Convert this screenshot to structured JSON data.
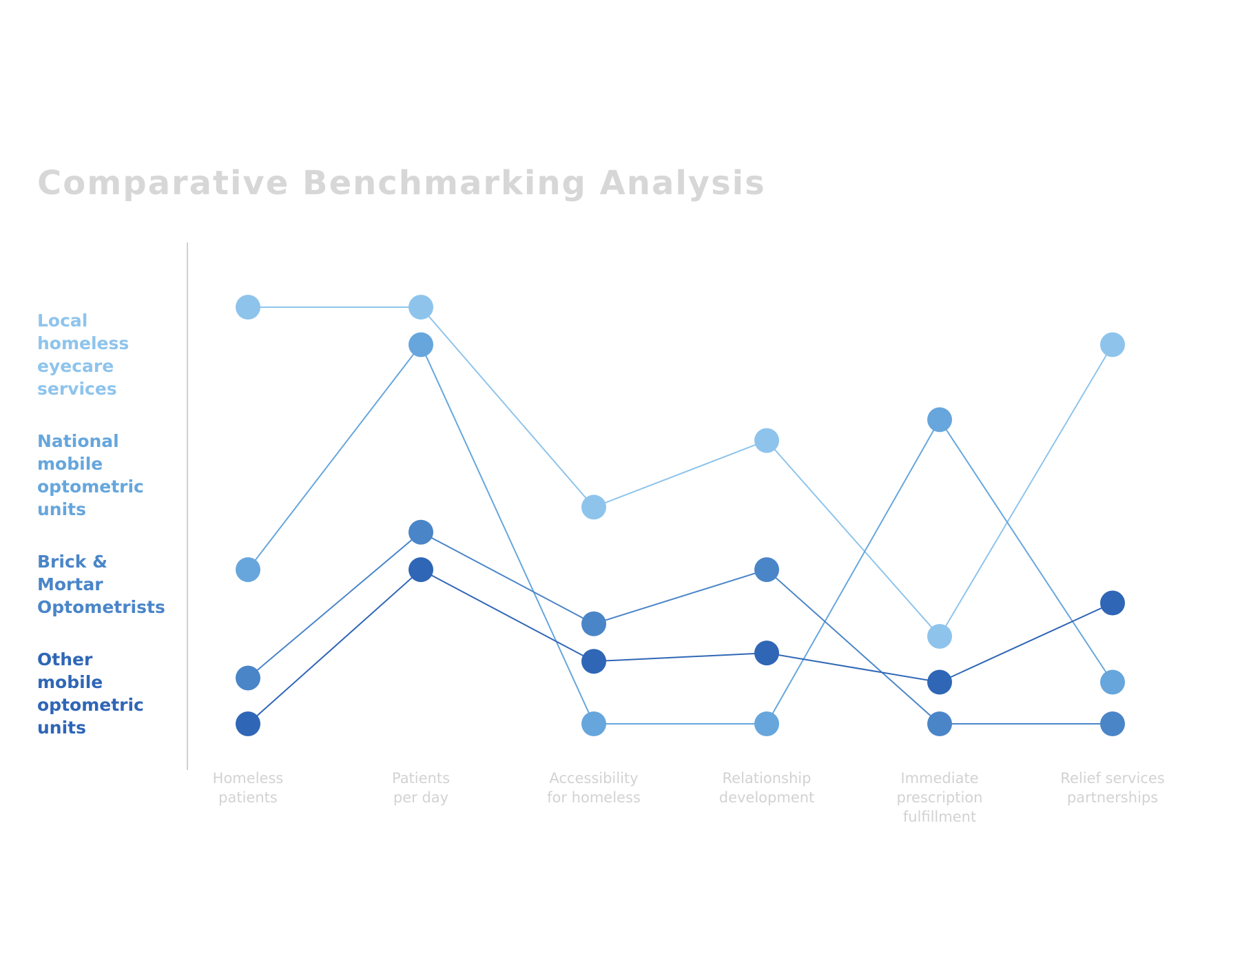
{
  "chart_data": {
    "type": "line",
    "title": "Comparative Benchmarking Analysis",
    "categories": [
      "Homeless patients",
      "Patients per day",
      "Accessibility for homeless",
      "Relationship development",
      "Immediate prescription fulfillment",
      "Relief services partnerships"
    ],
    "category_lines": [
      [
        "Homeless",
        "patients"
      ],
      [
        "Patients",
        "per day"
      ],
      [
        "Accessibility",
        "for homeless"
      ],
      [
        "Relationship",
        "development"
      ],
      [
        "Immediate",
        "prescription",
        "fulfillment"
      ],
      [
        "Relief services",
        "partnerships"
      ]
    ],
    "ylim": [
      0,
      10
    ],
    "grid": false,
    "legend_position": "left",
    "series": [
      {
        "name": "Local homeless eyecare services",
        "label_lines": [
          "Local",
          "homeless",
          "eyecare",
          "services"
        ],
        "color": "#8ec4ec",
        "values": [
          10,
          10,
          5.2,
          6.8,
          2.1,
          9.1
        ]
      },
      {
        "name": "National mobile optometric units",
        "label_lines": [
          "National",
          "mobile",
          "optometric",
          "units"
        ],
        "color": "#66a6dc",
        "values": [
          3.7,
          9.1,
          0,
          0,
          7.3,
          1.0
        ]
      },
      {
        "name": "Brick & Mortar Optometrists",
        "label_lines": [
          "Brick &",
          "Mortar",
          "Optometrists"
        ],
        "color": "#4a85c8",
        "values": [
          1.1,
          4.6,
          2.4,
          3.7,
          0,
          0
        ]
      },
      {
        "name": "Other mobile optometric units",
        "label_lines": [
          "Other",
          "mobile",
          "optometric",
          "units"
        ],
        "color": "#2f66b6",
        "values": [
          0,
          3.7,
          1.5,
          1.7,
          1.0,
          2.9
        ]
      }
    ]
  },
  "colors": {
    "title": "#d7d7d7",
    "axis_line": "#cfcfcf",
    "tick_label": "#d2d2d2"
  }
}
